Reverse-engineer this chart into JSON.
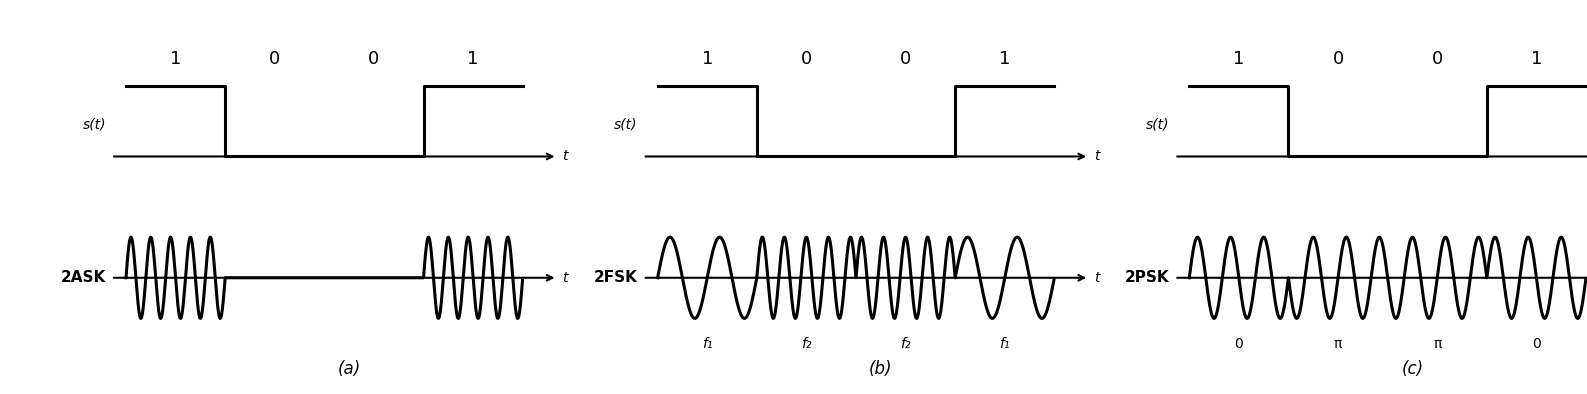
{
  "bg_color": "#ffffff",
  "line_color": "#000000",
  "line_width": 2.2,
  "bits": [
    1,
    0,
    0,
    1
  ],
  "panel_labels": [
    "(a)",
    "(b)",
    "(c)"
  ],
  "panel_a_mod": "2ASK",
  "panel_b_mod": "2FSK",
  "panel_c_mod": "2PSK",
  "st_label": "s(t)",
  "t_label": "t",
  "fsk_freq_labels": [
    "f₁",
    "f₂",
    "f₂",
    "f₁"
  ],
  "psk_phase_labels": [
    "0",
    "π",
    "π",
    "0"
  ],
  "f1": 2.0,
  "f2": 4.5,
  "f_ask": 5.0,
  "f_psk": 3.0,
  "bit_period": 1.0
}
